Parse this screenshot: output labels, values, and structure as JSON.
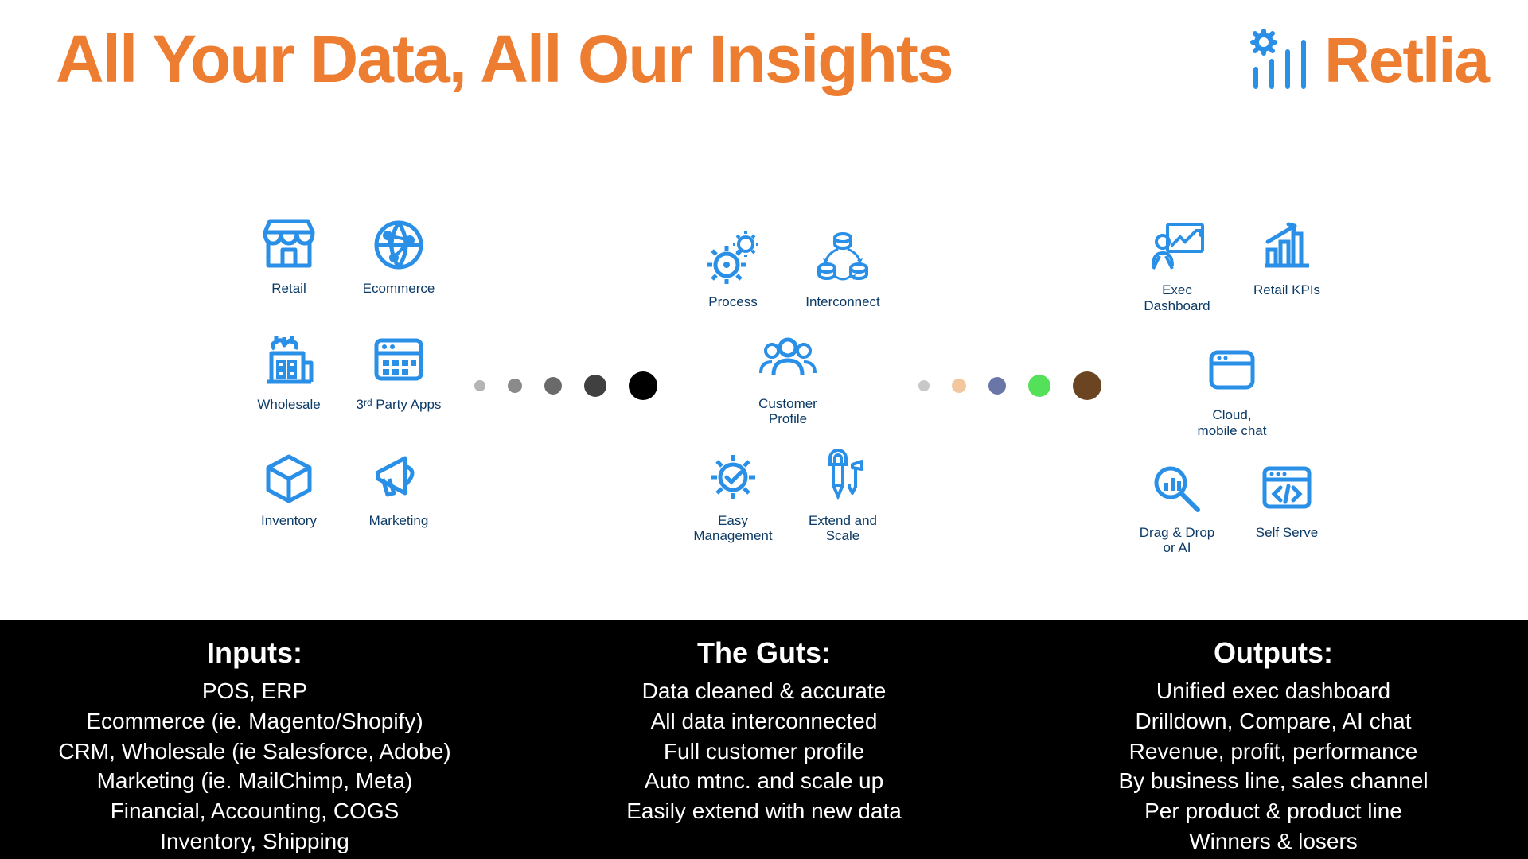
{
  "colors": {
    "accent_orange": "#ed7d31",
    "icon_blue": "#2a8fe6",
    "label_navy": "#0b3a66",
    "footer_bg": "#000000",
    "footer_text": "#ffffff",
    "page_bg": "#ffffff"
  },
  "header": {
    "title": "All Your Data, All Our Insights",
    "brand": "Retlia"
  },
  "icons": {
    "left": [
      {
        "id": "retail",
        "label": "Retail"
      },
      {
        "id": "ecommerce",
        "label": "Ecommerce"
      },
      {
        "id": "wholesale",
        "label": "Wholesale"
      },
      {
        "id": "thirdparty",
        "label": "3ʳᵈ Party Apps"
      },
      {
        "id": "inventory",
        "label": "Inventory"
      },
      {
        "id": "marketing",
        "label": "Marketing"
      }
    ],
    "center_top": [
      {
        "id": "process",
        "label": "Process"
      },
      {
        "id": "interconnect",
        "label": "Interconnect"
      }
    ],
    "center_mid": [
      {
        "id": "customer",
        "label": "Customer\nProfile"
      }
    ],
    "center_bot": [
      {
        "id": "easymgmt",
        "label": "Easy\nManagement"
      },
      {
        "id": "extend",
        "label": "Extend and\nScale"
      }
    ],
    "right_top": [
      {
        "id": "execdash",
        "label": "Exec\nDashboard"
      },
      {
        "id": "kpis",
        "label": "Retail KPIs"
      }
    ],
    "right_mid": [
      {
        "id": "cloud",
        "label": "Cloud,\nmobile chat"
      }
    ],
    "right_bot": [
      {
        "id": "dragdrop",
        "label": "Drag & Drop\nor AI"
      },
      {
        "id": "selfserve",
        "label": "Self Serve"
      }
    ]
  },
  "dots_left": [
    {
      "size": 14,
      "color": "#b5b5b5"
    },
    {
      "size": 18,
      "color": "#8a8a8a"
    },
    {
      "size": 22,
      "color": "#6a6a6a"
    },
    {
      "size": 28,
      "color": "#404040"
    },
    {
      "size": 36,
      "color": "#000000"
    }
  ],
  "dots_right": [
    {
      "size": 14,
      "color": "#c8c8c8"
    },
    {
      "size": 18,
      "color": "#f2c79e"
    },
    {
      "size": 22,
      "color": "#6b76a8"
    },
    {
      "size": 28,
      "color": "#55e05a"
    },
    {
      "size": 36,
      "color": "#6b4522"
    }
  ],
  "footer": {
    "cols": [
      {
        "title": "Inputs:",
        "lines": [
          "POS, ERP",
          "Ecommerce (ie. Magento/Shopify)",
          "CRM, Wholesale (ie Salesforce, Adobe)",
          "Marketing (ie. MailChimp, Meta)",
          "Financial, Accounting, COGS",
          "Inventory, Shipping"
        ]
      },
      {
        "title": "The Guts:",
        "lines": [
          "Data cleaned & accurate",
          "All data interconnected",
          "Full customer profile",
          "Auto mtnc. and scale up",
          "Easily extend with new data"
        ]
      },
      {
        "title": "Outputs:",
        "lines": [
          "Unified exec dashboard",
          "Drilldown, Compare, AI chat",
          "Revenue, profit, performance",
          "By business line, sales channel",
          "Per product & product line",
          "Winners & losers"
        ]
      }
    ]
  }
}
